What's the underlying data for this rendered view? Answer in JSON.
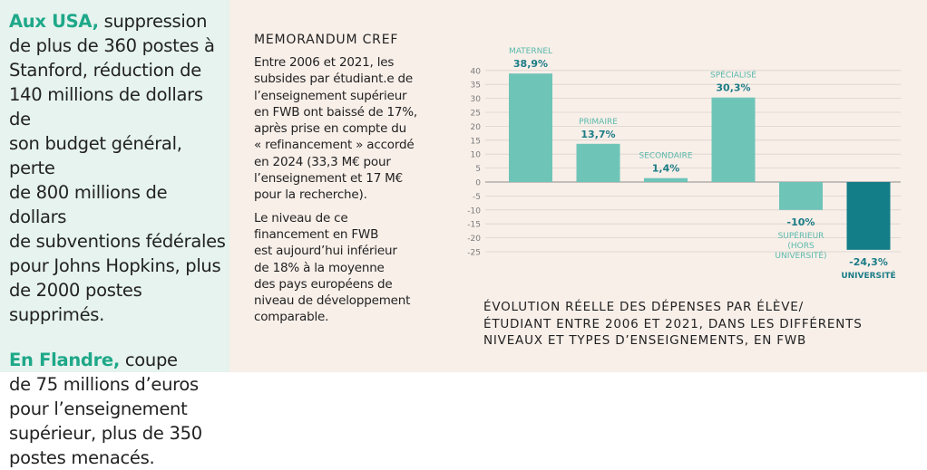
{
  "left_panel": {
    "p1_bold": "Aux USA,",
    "p1_line1": "suppression",
    "p1_lines": [
      "de plus de 360 postes à",
      "Stanford, réduction de",
      "140 millions de dollars de",
      "son budget général, perte",
      "de 800 millions de dollars",
      "de subventions fédérales",
      "pour Johns Hopkins, plus",
      "de 2000 postes supprimés."
    ],
    "p2_bold": "En Flandre,",
    "p2_line1": "coupe",
    "p2_lines": [
      "de 75 millions d’euros",
      "pour l’enseignement",
      "supérieur, plus de 350",
      "postes menacés."
    ]
  },
  "memo": {
    "title": "MEMORANDUM CREF",
    "p1_lines": [
      "Entre 2006 et 2021, les",
      "subsides par étudiant.e de",
      "l’enseignement supérieur",
      "en FWB ont baissé de 17%,",
      "après prise en compte du",
      "« refinancement » accordé",
      "en 2024 (33,3 M€ pour",
      "l’enseignement et 17 M€",
      "pour la recherche)."
    ],
    "p2_lines": [
      "Le niveau de ce",
      "financement en FWB",
      "est aujourd’hui inférieur",
      "de 18% à la moyenne",
      "des pays européens de",
      "niveau de développement",
      "comparable."
    ]
  },
  "caption_lines": [
    "ÉVOLUTION RÉELLE DES DÉPENSES PAR ÉLÈVE/",
    "ÉTUDIANT ENTRE 2006 ET 2021, DANS LES DIFFÉRENTS",
    "NIVEAUX ET TYPES D’ENSEIGNEMENTS, EN FWB"
  ],
  "chart_data": {
    "type": "bar",
    "title": "ÉVOLUTION RÉELLE DES DÉPENSES PAR ÉLÈVE/ÉTUDIANT ENTRE 2006 ET 2021, DANS LES DIFFÉRENTS NIVEAUX ET TYPES D’ENSEIGNEMENTS, EN FWB",
    "ylim": [
      -25,
      40
    ],
    "yticks": [
      40,
      35,
      30,
      25,
      20,
      15,
      10,
      5,
      0,
      -5,
      -10,
      -15,
      -20,
      -25
    ],
    "grid": true,
    "bars": [
      {
        "category": "MATERNEL",
        "value": 38.9,
        "value_label": "38,9%",
        "color": "#6fc4b8"
      },
      {
        "category": "PRIMAIRE",
        "value": 13.7,
        "value_label": "13,7%",
        "color": "#6fc4b8"
      },
      {
        "category": "SECONDAIRE",
        "value": 1.4,
        "value_label": "1,4%",
        "color": "#6fc4b8"
      },
      {
        "category": "SPÉCIALISÉ",
        "value": 30.3,
        "value_label": "30,3%",
        "color": "#6fc4b8"
      },
      {
        "category": "SUPÉRIEUR (HORS UNIVERSITÉ)",
        "category_lines": [
          "SUPÉRIEUR",
          "(HORS",
          "UNIVERSITÉ)"
        ],
        "value": -10,
        "value_label": "-10%",
        "color": "#6fc4b8"
      },
      {
        "category": "UNIVERSITÉ",
        "value": -24.3,
        "value_label": "-24,3%",
        "color": "#137d88"
      }
    ]
  }
}
